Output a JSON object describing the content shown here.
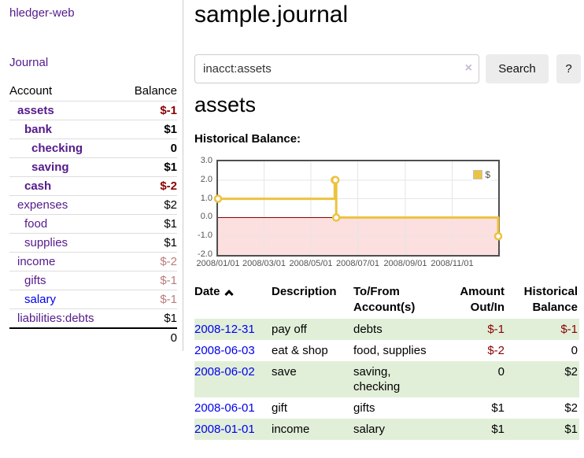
{
  "sidebar": {
    "app_title": "hledger-web",
    "nav_journal": "Journal",
    "accounts": {
      "col_account": "Account",
      "col_balance": "Balance",
      "rows": [
        {
          "name": "assets",
          "balance": "$-1"
        },
        {
          "name": "bank",
          "balance": "$1"
        },
        {
          "name": "checking",
          "balance": "0"
        },
        {
          "name": "saving",
          "balance": "$1"
        },
        {
          "name": "cash",
          "balance": "$-2"
        },
        {
          "name": "expenses",
          "balance": "$2"
        },
        {
          "name": "food",
          "balance": "$1"
        },
        {
          "name": "supplies",
          "balance": "$1"
        },
        {
          "name": "income",
          "balance": "$-2"
        },
        {
          "name": "gifts",
          "balance": "$-1"
        },
        {
          "name": "salary",
          "balance": "$-1"
        },
        {
          "name": "liabilities:debts",
          "balance": "$1"
        }
      ],
      "total": "0"
    }
  },
  "header": {
    "title": "sample.journal"
  },
  "search": {
    "value": "inacct:assets",
    "clear": "×",
    "button": "Search",
    "help": "?"
  },
  "account_view": {
    "heading": "assets",
    "chart_label": "Historical Balance:"
  },
  "chart_data": {
    "type": "line",
    "step": true,
    "title": "Historical Balance:",
    "x_range": [
      "2008-01-01",
      "2008-12-31"
    ],
    "ylim": [
      -2,
      3
    ],
    "x_tick_labels": [
      "2008/01/01",
      "2008/03/01",
      "2008/05/01",
      "2008/07/01",
      "2008/09/01",
      "2008/11/01"
    ],
    "y_ticks": [
      3,
      2,
      1,
      0,
      -1,
      -2
    ],
    "y_tick_labels": [
      "3.0",
      "2.0",
      "1.0",
      "0.0",
      "-1.0",
      "-2.0"
    ],
    "grid_color": "#e6e6e6",
    "border_color": "#4f4f4f",
    "zero_line_color": "#8b0000",
    "negative_region_color": "#fcdfdf",
    "legend_position": "top-right",
    "series": [
      {
        "name": "$",
        "color": "#edc240",
        "points": [
          [
            "2008-01-01",
            1
          ],
          [
            "2008-06-01",
            2
          ],
          [
            "2008-06-02",
            2
          ],
          [
            "2008-06-03",
            0
          ],
          [
            "2008-12-31",
            -1
          ]
        ]
      }
    ]
  },
  "register": {
    "headers": {
      "date": "Date",
      "description": "Description",
      "accounts": "To/From Account(s)",
      "amount": "Amount Out/In",
      "balance": "Historical Balance"
    },
    "rows": [
      {
        "date": "2008-12-31",
        "description": "pay off",
        "accounts": "debts",
        "amount": "$-1",
        "balance": "$-1"
      },
      {
        "date": "2008-06-03",
        "description": "eat & shop",
        "accounts": "food, supplies",
        "amount": "$-2",
        "balance": "0"
      },
      {
        "date": "2008-06-02",
        "description": "save",
        "accounts": "saving, checking",
        "amount": "0",
        "balance": "$2"
      },
      {
        "date": "2008-06-01",
        "description": "gift",
        "accounts": "gifts",
        "amount": "$1",
        "balance": "$2"
      },
      {
        "date": "2008-01-01",
        "description": "income",
        "accounts": "salary",
        "amount": "$1",
        "balance": "$1"
      }
    ]
  }
}
